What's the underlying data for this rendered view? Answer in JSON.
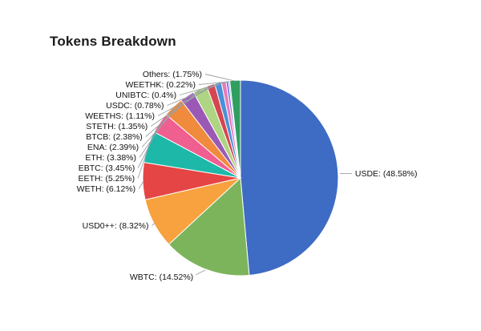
{
  "chart_data": {
    "type": "pie",
    "title": "Tokens Breakdown",
    "categories": [
      "USDE",
      "WBTC",
      "USD0++",
      "WETH",
      "EETH",
      "EBTC",
      "ETH",
      "ENA",
      "BTCB",
      "STETH",
      "WEETHS",
      "USDC",
      "UNIBTC",
      "WEETHK",
      "Others"
    ],
    "values": [
      48.58,
      14.52,
      8.32,
      6.12,
      5.25,
      3.45,
      3.38,
      2.39,
      2.38,
      1.35,
      1.11,
      0.78,
      0.4,
      0.22,
      1.75
    ],
    "labels": [
      "USDE: (48.58%)",
      "WBTC: (14.52%)",
      "USD0++: (8.32%)",
      "WETH: (6.12%)",
      "EETH: (5.25%)",
      "EBTC: (3.45%)",
      "ETH: (3.38%)",
      "ENA: (2.39%)",
      "BTCB: (2.38%)",
      "STETH: (1.35%)",
      "WEETHS: (1.11%)",
      "USDC: (0.78%)",
      "UNIBTC: (0.4%)",
      "WEETHK: (0.22%)",
      "Others: (1.75%)"
    ],
    "colors": [
      "#3e6bc3",
      "#7cb45c",
      "#f7a23e",
      "#e64545",
      "#1db8a8",
      "#ef5f90",
      "#f08a3c",
      "#9b59b6",
      "#aed581",
      "#d64550",
      "#4a90d9",
      "#e87bb8",
      "#7a6ff0",
      "#45c4b0",
      "#2f9e5f"
    ],
    "leader_line_color": "#9aa0a6",
    "start_angle_deg": -90,
    "direction": "clockwise",
    "legend_position": "none",
    "label_style": "outside-with-leader-lines"
  }
}
